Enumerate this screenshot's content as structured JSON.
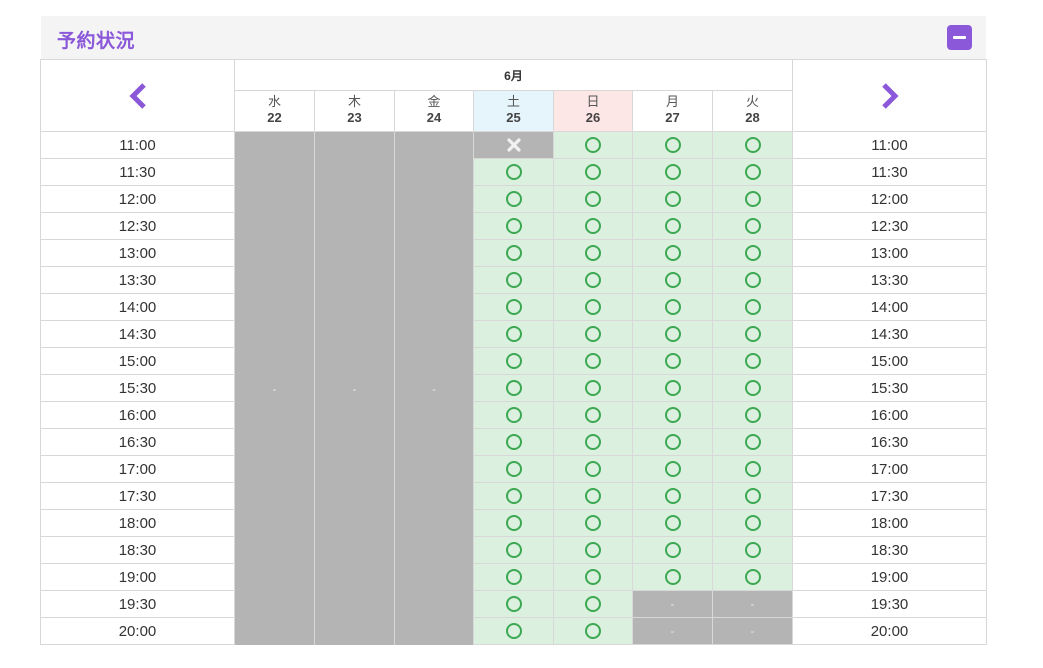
{
  "panel": {
    "title": "予約状況",
    "collapse_icon": "minus-icon"
  },
  "nav": {
    "prev_icon": "chevron-left-icon",
    "next_icon": "chevron-right-icon"
  },
  "month_label": "6月",
  "colors": {
    "accent": "#8a58d8",
    "available_bg": "#dcf0e0",
    "unavailable_bg": "#b4b4b4",
    "available_mark": "#3ca852",
    "saturday_bg": "#e6f5fc",
    "sunday_bg": "#fde6e6"
  },
  "days": [
    {
      "dow": "水",
      "date": "22"
    },
    {
      "dow": "木",
      "date": "23"
    },
    {
      "dow": "金",
      "date": "24"
    },
    {
      "dow": "土",
      "date": "25"
    },
    {
      "dow": "日",
      "date": "26"
    },
    {
      "dow": "月",
      "date": "27"
    },
    {
      "dow": "火",
      "date": "28"
    }
  ],
  "times": [
    "11:00",
    "11:30",
    "12:00",
    "12:30",
    "13:00",
    "13:30",
    "14:00",
    "14:30",
    "15:00",
    "15:30",
    "16:00",
    "16:30",
    "17:00",
    "17:30",
    "18:00",
    "18:30",
    "19:00",
    "19:30",
    "20:00"
  ],
  "closed_mark": "-",
  "slots": {
    "sat_25": [
      "x",
      "o",
      "o",
      "o",
      "o",
      "o",
      "o",
      "o",
      "o",
      "o",
      "o",
      "o",
      "o",
      "o",
      "o",
      "o",
      "o",
      "o",
      "o"
    ],
    "sun_26": [
      "o",
      "o",
      "o",
      "o",
      "o",
      "o",
      "o",
      "o",
      "o",
      "o",
      "o",
      "o",
      "o",
      "o",
      "o",
      "o",
      "o",
      "o",
      "o"
    ],
    "mon_27": [
      "o",
      "o",
      "o",
      "o",
      "o",
      "o",
      "o",
      "o",
      "o",
      "o",
      "o",
      "o",
      "o",
      "o",
      "o",
      "o",
      "o",
      "-",
      "-"
    ],
    "tue_28": [
      "o",
      "o",
      "o",
      "o",
      "o",
      "o",
      "o",
      "o",
      "o",
      "o",
      "o",
      "o",
      "o",
      "o",
      "o",
      "o",
      "o",
      "-",
      "-"
    ]
  }
}
